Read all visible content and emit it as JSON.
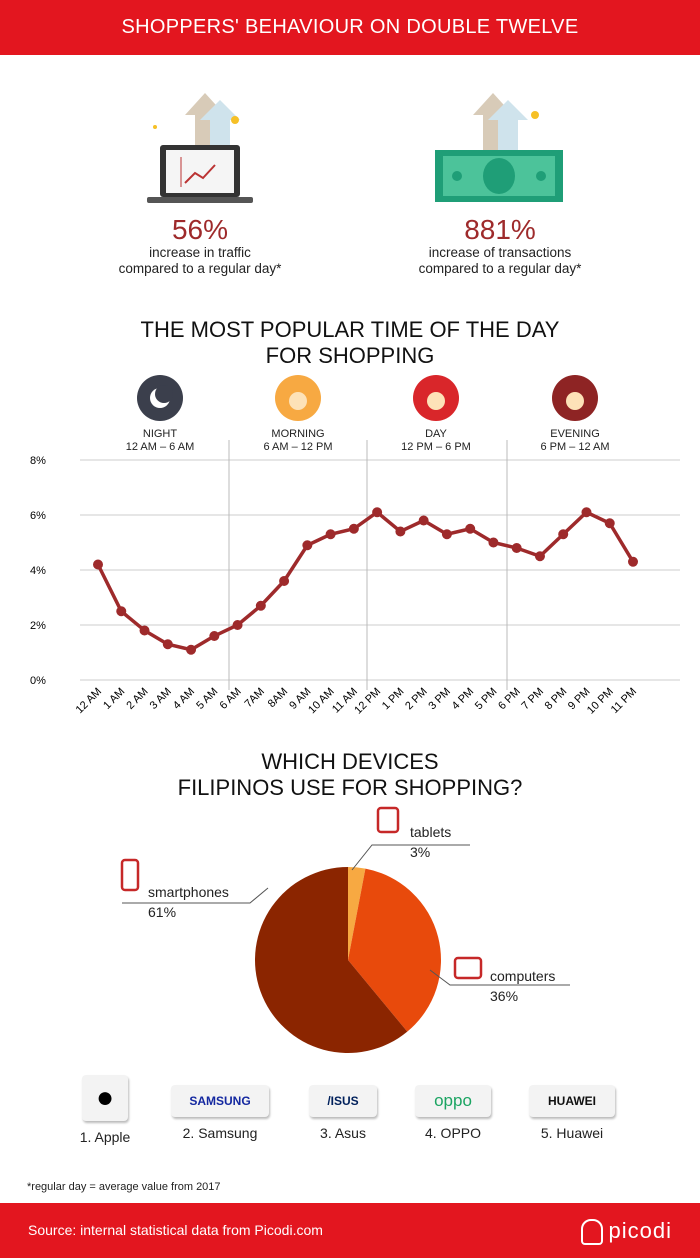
{
  "header": {
    "title": "SHOPPERS' BEHAVIOUR ON DOUBLE TWELVE"
  },
  "stats": [
    {
      "value": "56%",
      "line1": "increase in traffic",
      "line2": "compared to a regular day*",
      "icon": "laptop-growth-icon"
    },
    {
      "value": "881%",
      "line1": "increase of transactions",
      "line2": "compared to a regular day*",
      "icon": "money-growth-icon"
    }
  ],
  "time_section": {
    "title_line1": "THE MOST POPULAR TIME OF THE DAY",
    "title_line2": "FOR SHOPPING",
    "periods": [
      {
        "name": "NIGHT",
        "range": "12 AM – 6 AM",
        "icon": "moon-icon",
        "color": "#3b3f4c"
      },
      {
        "name": "MORNING",
        "range": "6 AM – 12 PM",
        "icon": "sunrise-icon",
        "color": "#f7a942"
      },
      {
        "name": "DAY",
        "range": "12 PM – 6 PM",
        "icon": "sun-icon",
        "color": "#d9262a"
      },
      {
        "name": "EVENING",
        "range": "6 PM – 12 AM",
        "icon": "sunset-icon",
        "color": "#8e2424"
      }
    ]
  },
  "chart_data": [
    {
      "type": "line",
      "title": "THE MOST POPULAR TIME OF THE DAY FOR SHOPPING",
      "categories": [
        "12 AM",
        "1 AM",
        "2 AM",
        "3 AM",
        "4 AM",
        "5 AM",
        "6 AM",
        "7AM",
        "8AM",
        "9 AM",
        "10 AM",
        "11 AM",
        "12 PM",
        "1 PM",
        "2 PM",
        "3 PM",
        "4 PM",
        "5 PM",
        "6 PM",
        "7 PM",
        "8 PM",
        "9 PM",
        "10 PM",
        "11 PM"
      ],
      "values": [
        4.2,
        2.5,
        1.8,
        1.3,
        1.1,
        1.6,
        2.0,
        2.7,
        3.6,
        4.9,
        5.3,
        5.5,
        6.1,
        5.4,
        5.8,
        5.3,
        5.5,
        5.0,
        4.8,
        4.5,
        5.3,
        6.1,
        5.7,
        4.3
      ],
      "yticks": [
        "0%",
        "2%",
        "4%",
        "6%",
        "8%"
      ],
      "ylim": [
        0,
        8
      ],
      "grid": true,
      "color": "#9e2a2b"
    },
    {
      "type": "pie",
      "title_line1": "WHICH DEVICES",
      "title_line2": "FILIPINOS USE FOR SHOPPING?",
      "slices": [
        {
          "label": "tablets",
          "value": 3,
          "display": "3%",
          "color": "#f7a942",
          "icon": "tablet-icon"
        },
        {
          "label": "computers",
          "value": 36,
          "display": "36%",
          "color": "#e84a0c",
          "icon": "monitor-icon"
        },
        {
          "label": "smartphones",
          "value": 61,
          "display": "61%",
          "color": "#8b2500",
          "icon": "smartphone-icon"
        }
      ]
    }
  ],
  "brands": [
    {
      "label": "1. Apple",
      "logo": ""
    },
    {
      "label": "2. Samsung",
      "logo": "SAMSUNG",
      "color": "#1428a0"
    },
    {
      "label": "3. Asus",
      "logo": "/ISUS",
      "color": "#00205b"
    },
    {
      "label": "4. OPPO",
      "logo": "oppo",
      "color": "#1ba462"
    },
    {
      "label": "5. Huawei",
      "logo": "HUAWEI",
      "color": "#111"
    }
  ],
  "footnote": "*regular day = average value from 2017",
  "footer": {
    "source": "Source: internal statistical data from Picodi.com",
    "logo": "picodi"
  }
}
